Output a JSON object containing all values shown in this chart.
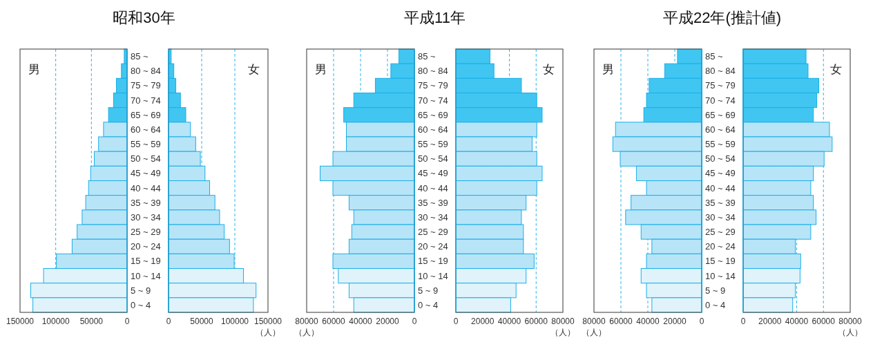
{
  "chart_data": [
    {
      "type": "bar",
      "orientation": "horizontal",
      "title": "昭和30年",
      "annotations": [
        "男"
      ],
      "categories": [
        "85 ~",
        "80 ~ 84",
        "75 ~ 79",
        "70 ~ 74",
        "65 ~ 69",
        "60 ~ 64",
        "55 ~ 59",
        "50 ~ 54",
        "45 ~ 49",
        "40 ~ 44",
        "35 ~ 39",
        "30 ~ 34",
        "25 ~ 29",
        "20 ~ 24",
        "15 ~ 19",
        "10 ~ 14",
        "5 ~ 9",
        "0 ~ 4"
      ],
      "values": [
        4000,
        8000,
        15000,
        19000,
        26000,
        33000,
        40000,
        46000,
        51000,
        54000,
        58000,
        63000,
        70000,
        77000,
        99000,
        117000,
        135000,
        132000
      ],
      "colors": [
        "#40c6f1",
        "#40c6f1",
        "#40c6f1",
        "#40c6f1",
        "#40c6f1",
        "#b8e4f8",
        "#b8e4f8",
        "#b8e4f8",
        "#b8e4f8",
        "#b8e4f8",
        "#b8e4f8",
        "#b8e4f8",
        "#b8e4f8",
        "#b8e4f8",
        "#b8e4f8",
        "#e0f3fb",
        "#e0f3fb",
        "#e0f3fb"
      ],
      "xlim": [
        150000,
        0
      ],
      "xticks": [
        150000,
        100000,
        50000,
        0
      ],
      "grid": "x"
    },
    {
      "type": "bar",
      "orientation": "horizontal",
      "annotations": [
        "女"
      ],
      "xlabel": "（人）",
      "categories": [
        null,
        null,
        null,
        null,
        null,
        null,
        null,
        null,
        null,
        null,
        null,
        null,
        null,
        null,
        null,
        null,
        null,
        null
      ],
      "values": [
        4000,
        8000,
        11000,
        18000,
        26000,
        33000,
        41000,
        48000,
        55000,
        62000,
        70000,
        77000,
        84000,
        92000,
        99000,
        113000,
        132000,
        128000
      ],
      "colors": [
        "#40c6f1",
        "#40c6f1",
        "#40c6f1",
        "#40c6f1",
        "#40c6f1",
        "#b8e4f8",
        "#b8e4f8",
        "#b8e4f8",
        "#b8e4f8",
        "#b8e4f8",
        "#b8e4f8",
        "#b8e4f8",
        "#b8e4f8",
        "#b8e4f8",
        "#b8e4f8",
        "#e0f3fb",
        "#e0f3fb",
        "#e0f3fb"
      ],
      "xlim": [
        0,
        150000
      ],
      "xticks": [
        0,
        50000,
        100000,
        150000
      ],
      "grid": "x"
    },
    {
      "type": "bar",
      "orientation": "horizontal",
      "title": "平成11年",
      "annotations": [
        "男"
      ],
      "xlabel": "（人）",
      "categories": [
        "85 ~",
        "80 ~ 84",
        "75 ~ 79",
        "70 ~ 74",
        "65 ~ 69",
        "60 ~ 64",
        "55 ~ 59",
        "50 ~ 54",
        "45 ~ 49",
        "40 ~ 44",
        "35 ~ 39",
        "30 ~ 34",
        "25 ~ 29",
        "20 ~ 24",
        "15 ~ 19",
        "10 ~ 14",
        "5 ~ 9",
        "0 ~ 4"
      ],
      "values": [
        11500,
        17500,
        29000,
        45000,
        52500,
        50500,
        50500,
        60500,
        70000,
        60500,
        48500,
        45000,
        46500,
        48500,
        60500,
        56500,
        48500,
        45000
      ],
      "colors": [
        "#40c6f1",
        "#40c6f1",
        "#40c6f1",
        "#40c6f1",
        "#40c6f1",
        "#b8e4f8",
        "#b8e4f8",
        "#b8e4f8",
        "#b8e4f8",
        "#b8e4f8",
        "#b8e4f8",
        "#b8e4f8",
        "#b8e4f8",
        "#b8e4f8",
        "#b8e4f8",
        "#e0f3fb",
        "#e0f3fb",
        "#e0f3fb"
      ],
      "xlim": [
        80000,
        0
      ],
      "xticks": [
        80000,
        60000,
        40000,
        20000,
        0
      ],
      "grid": "x"
    },
    {
      "type": "bar",
      "orientation": "horizontal",
      "annotations": [
        "女"
      ],
      "xlabel": "（人）",
      "categories": [
        null,
        null,
        null,
        null,
        null,
        null,
        null,
        null,
        null,
        null,
        null,
        null,
        null,
        null,
        null,
        null,
        null,
        null
      ],
      "values": [
        25500,
        28500,
        49000,
        60500,
        64500,
        60500,
        57000,
        60500,
        64500,
        60500,
        52500,
        49000,
        50500,
        50500,
        58500,
        52500,
        45000,
        41000
      ],
      "colors": [
        "#40c6f1",
        "#40c6f1",
        "#40c6f1",
        "#40c6f1",
        "#40c6f1",
        "#b8e4f8",
        "#b8e4f8",
        "#b8e4f8",
        "#b8e4f8",
        "#b8e4f8",
        "#b8e4f8",
        "#b8e4f8",
        "#b8e4f8",
        "#b8e4f8",
        "#b8e4f8",
        "#e0f3fb",
        "#e0f3fb",
        "#e0f3fb"
      ],
      "xlim": [
        0,
        80000
      ],
      "xticks": [
        0,
        20000,
        40000,
        60000,
        80000
      ],
      "grid": "x"
    },
    {
      "type": "bar",
      "orientation": "horizontal",
      "title": "平成22年(推計値)",
      "annotations": [
        "男"
      ],
      "xlabel": "（人）",
      "categories": [
        "85 ~",
        "80 ~ 84",
        "75 ~ 79",
        "70 ~ 74",
        "65 ~ 69",
        "60 ~ 64",
        "55 ~ 59",
        "50 ~ 54",
        "45 ~ 49",
        "40 ~ 44",
        "35 ~ 39",
        "30 ~ 34",
        "25 ~ 29",
        "20 ~ 24",
        "15 ~ 19",
        "10 ~ 14",
        "5 ~ 9",
        "0 ~ 4"
      ],
      "values": [
        18000,
        27500,
        39000,
        41000,
        43000,
        64000,
        66000,
        60500,
        48500,
        41000,
        52500,
        56500,
        45000,
        37000,
        41000,
        45000,
        41000,
        37000
      ],
      "colors": [
        "#40c6f1",
        "#40c6f1",
        "#40c6f1",
        "#40c6f1",
        "#40c6f1",
        "#b8e4f8",
        "#b8e4f8",
        "#b8e4f8",
        "#b8e4f8",
        "#b8e4f8",
        "#b8e4f8",
        "#b8e4f8",
        "#b8e4f8",
        "#b8e4f8",
        "#b8e4f8",
        "#e0f3fb",
        "#e0f3fb",
        "#e0f3fb"
      ],
      "xlim": [
        80000,
        0
      ],
      "xticks": [
        80000,
        60000,
        40000,
        20000,
        0
      ],
      "grid": "x"
    },
    {
      "type": "bar",
      "orientation": "horizontal",
      "annotations": [
        "女"
      ],
      "xlabel": "（人）",
      "categories": [
        null,
        null,
        null,
        null,
        null,
        null,
        null,
        null,
        null,
        null,
        null,
        null,
        null,
        null,
        null,
        null,
        null,
        null
      ],
      "values": [
        47000,
        48500,
        56500,
        55000,
        52500,
        64500,
        66500,
        60500,
        52500,
        50500,
        52500,
        54500,
        50500,
        39000,
        43000,
        42500,
        39000,
        37000
      ],
      "colors": [
        "#40c6f1",
        "#40c6f1",
        "#40c6f1",
        "#40c6f1",
        "#40c6f1",
        "#b8e4f8",
        "#b8e4f8",
        "#b8e4f8",
        "#b8e4f8",
        "#b8e4f8",
        "#b8e4f8",
        "#b8e4f8",
        "#b8e4f8",
        "#b8e4f8",
        "#b8e4f8",
        "#e0f3fb",
        "#e0f3fb",
        "#e0f3fb"
      ],
      "xlim": [
        0,
        80000
      ],
      "xticks": [
        0,
        20000,
        40000,
        60000,
        80000
      ],
      "grid": "x"
    }
  ]
}
